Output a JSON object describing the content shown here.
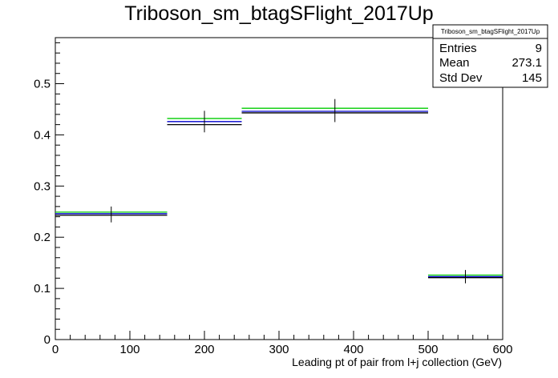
{
  "chart_data": {
    "type": "histogram",
    "title": "Triboson_sm_btagSFlight_2017Up",
    "xlabel": "Leading pt of pair from l+j collection (GeV)",
    "ylabel": "",
    "xlim": [
      0,
      600
    ],
    "ylim": [
      0,
      0.59
    ],
    "x_ticks": [
      0,
      100,
      200,
      300,
      400,
      500,
      600
    ],
    "y_ticks": [
      0,
      0.1,
      0.2,
      0.3,
      0.4,
      0.5
    ],
    "x_tick_labels": [
      "0",
      "100",
      "200",
      "300",
      "400",
      "500",
      "600"
    ],
    "y_tick_labels": [
      "0",
      "0.1",
      "0.2",
      "0.3",
      "0.4",
      "0.5"
    ],
    "bins": [
      {
        "x_low": 0,
        "x_high": 150,
        "x_center": 75,
        "value": 0.243,
        "err_low": 0.229,
        "err_high": 0.26
      },
      {
        "x_low": 150,
        "x_high": 250,
        "x_center": 200,
        "value": 0.426,
        "err_low": 0.405,
        "err_high": 0.447
      },
      {
        "x_low": 250,
        "x_high": 500,
        "x_center": 375,
        "value": 0.446,
        "err_low": 0.425,
        "err_high": 0.47
      },
      {
        "x_low": 500,
        "x_high": 600,
        "x_center": 550,
        "value": 0.123,
        "err_low": 0.11,
        "err_high": 0.136
      }
    ],
    "series": [
      {
        "name": "black",
        "color": "#000000",
        "values": [
          0.243,
          0.42,
          0.443,
          0.121
        ]
      },
      {
        "name": "blue",
        "color": "#0000cc",
        "values": [
          0.246,
          0.426,
          0.446,
          0.123
        ]
      },
      {
        "name": "green",
        "color": "#00cc00",
        "values": [
          0.249,
          0.432,
          0.452,
          0.126
        ]
      }
    ],
    "stats_box": {
      "title": "Triboson_sm_btagSFlight_2017Up",
      "rows": [
        {
          "label": "Entries",
          "value": "9"
        },
        {
          "label": "Mean",
          "value": "273.1"
        },
        {
          "label": "Std Dev",
          "value": "145"
        }
      ]
    },
    "grid": false,
    "legend": "top-right"
  }
}
